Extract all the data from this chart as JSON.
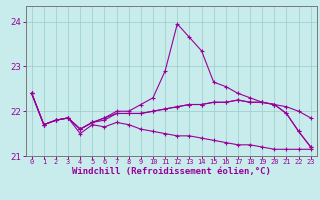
{
  "x": [
    0,
    1,
    2,
    3,
    4,
    5,
    6,
    7,
    8,
    9,
    10,
    11,
    12,
    13,
    14,
    15,
    16,
    17,
    18,
    19,
    20,
    21,
    22,
    23
  ],
  "line1": [
    22.4,
    21.7,
    21.8,
    21.85,
    21.6,
    21.75,
    21.8,
    21.95,
    21.95,
    21.95,
    22.0,
    22.05,
    22.1,
    22.15,
    22.15,
    22.2,
    22.2,
    22.25,
    22.2,
    22.2,
    22.15,
    22.1,
    22.0,
    21.85
  ],
  "line2": [
    22.4,
    21.7,
    21.8,
    21.85,
    21.6,
    21.75,
    21.85,
    21.95,
    21.95,
    21.95,
    22.0,
    22.05,
    22.1,
    22.15,
    22.15,
    22.2,
    22.2,
    22.25,
    22.2,
    22.2,
    22.15,
    21.95,
    21.55,
    21.2
  ],
  "line3": [
    22.4,
    21.7,
    21.8,
    21.85,
    21.6,
    21.75,
    21.85,
    22.0,
    22.0,
    22.15,
    22.3,
    22.9,
    23.95,
    23.65,
    23.35,
    22.65,
    22.55,
    22.4,
    22.3,
    22.2,
    22.15,
    21.95,
    21.55,
    21.2
  ],
  "line4": [
    22.4,
    21.7,
    21.8,
    21.85,
    21.5,
    21.7,
    21.65,
    21.75,
    21.7,
    21.6,
    21.55,
    21.5,
    21.45,
    21.45,
    21.4,
    21.35,
    21.3,
    21.25,
    21.25,
    21.2,
    21.15,
    21.15,
    21.15,
    21.15
  ],
  "color": "#990099",
  "bg_color": "#c8ecec",
  "grid_color": "#99cccc",
  "xlabel": "Windchill (Refroidissement éolien,°C)",
  "ylim": [
    21.0,
    24.35
  ],
  "xlim": [
    -0.5,
    23.5
  ],
  "yticks": [
    21,
    22,
    23,
    24
  ],
  "xticks": [
    0,
    1,
    2,
    3,
    4,
    5,
    6,
    7,
    8,
    9,
    10,
    11,
    12,
    13,
    14,
    15,
    16,
    17,
    18,
    19,
    20,
    21,
    22,
    23
  ]
}
